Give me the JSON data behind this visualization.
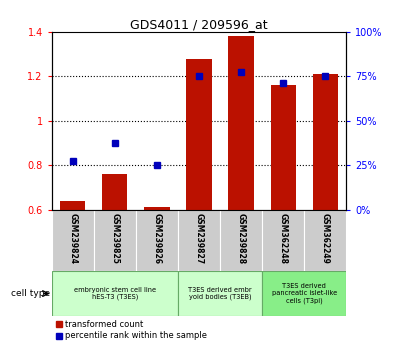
{
  "title": "GDS4011 / 209596_at",
  "samples": [
    "GSM239824",
    "GSM239825",
    "GSM239826",
    "GSM239827",
    "GSM239828",
    "GSM362248",
    "GSM362249"
  ],
  "transformed_count": [
    0.64,
    0.76,
    0.61,
    1.28,
    1.38,
    1.16,
    1.21
  ],
  "percentile_rank": [
    0.82,
    0.9,
    0.8,
    1.2,
    1.22,
    1.17,
    1.2
  ],
  "ylim_left": [
    0.6,
    1.4
  ],
  "ylim_right": [
    0,
    100
  ],
  "yticks_left": [
    0.6,
    0.8,
    1.0,
    1.2,
    1.4
  ],
  "ytick_labels_left": [
    "0.6",
    "0.8",
    "1",
    "1.2",
    "1.4"
  ],
  "yticks_right_vals": [
    0,
    25,
    50,
    75,
    100
  ],
  "ytick_labels_right": [
    "0%",
    "25%",
    "50%",
    "75%",
    "100%"
  ],
  "bar_color": "#bb1100",
  "dot_color": "#0000bb",
  "bar_width": 0.6,
  "grid_ticks": [
    0.8,
    1.0,
    1.2
  ],
  "group_spans": [
    {
      "start": 0,
      "end": 2,
      "label1": "embryonic stem cell line",
      "label2": "hES-T3 (T3ES)",
      "color": "#ccffcc"
    },
    {
      "start": 3,
      "end": 4,
      "label1": "T3ES derived embr",
      "label2": "yoid bodies (T3EB)",
      "color": "#ccffcc"
    },
    {
      "start": 5,
      "end": 6,
      "label1": "T3ES derived",
      "label2": "pancreatic islet-like\ncells (T3pi)",
      "color": "#88ee88"
    }
  ],
  "gray_color": "#cccccc",
  "legend_items": [
    "transformed count",
    "percentile rank within the sample"
  ],
  "legend_colors": [
    "#bb1100",
    "#0000bb"
  ],
  "cell_type_label": "cell type"
}
